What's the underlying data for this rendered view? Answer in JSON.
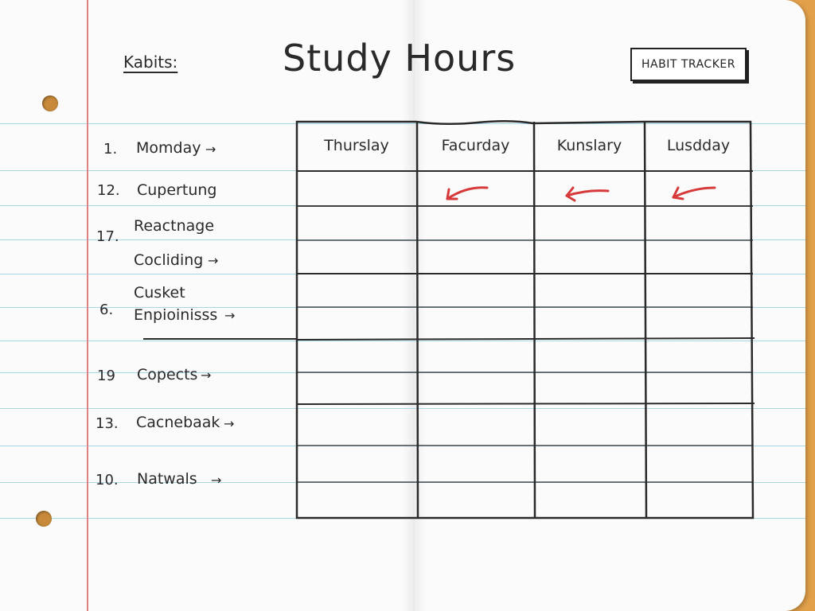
{
  "header": {
    "habits_label": "Kabits:",
    "title": "Study Hours",
    "tracker_button": "HABIT TRACKER"
  },
  "habits": [
    {
      "num": "1.",
      "label": "Momday",
      "arrow": "→"
    },
    {
      "num": "12.",
      "label": "Cupertung",
      "arrow": ""
    },
    {
      "num": "17.",
      "label": "Reactnage",
      "arrow": ""
    },
    {
      "num": "",
      "label": "Cocliding",
      "arrow": "→"
    },
    {
      "num": "",
      "label": "Cusket",
      "arrow": ""
    },
    {
      "num": "6.",
      "label": "Enpioinisss",
      "arrow": "→"
    },
    {
      "num": "19",
      "label": "Copects",
      "arrow": "→"
    },
    {
      "num": "13.",
      "label": "Cacnebaak",
      "arrow": "→"
    },
    {
      "num": "10.",
      "label": "Natwals",
      "arrow": "→"
    }
  ],
  "table": {
    "columns": [
      "Thurslay",
      "Facurday",
      "Kunslary",
      "Lusdday"
    ]
  },
  "colors": {
    "margin_line": "#e08080",
    "ruled_line": "#a9d6e8",
    "red_arrow": "#d63a3a",
    "desk": "#e2a04a"
  }
}
